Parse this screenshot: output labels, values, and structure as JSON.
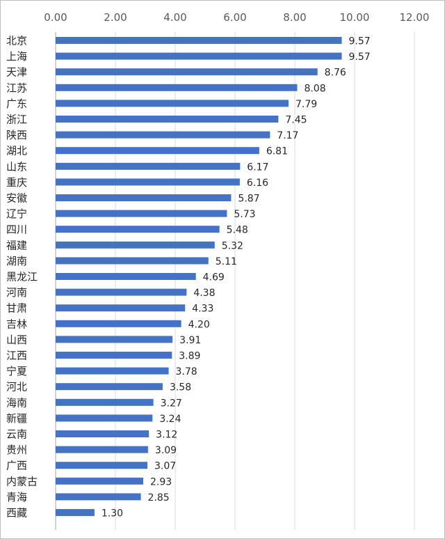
{
  "chart_data": {
    "type": "bar",
    "orientation": "horizontal",
    "title": "",
    "xlabel": "",
    "ylabel": "",
    "xlim": [
      0,
      12
    ],
    "xticks": [
      "0.00",
      "2.00",
      "4.00",
      "6.00",
      "8.00",
      "10.00",
      "12.00"
    ],
    "x_axis_position": "top",
    "grid": true,
    "bar_color": "#4472C4",
    "categories": [
      "北京",
      "上海",
      "天津",
      "江苏",
      "广东",
      "浙江",
      "陕西",
      "湖北",
      "山东",
      "重庆",
      "安徽",
      "辽宁",
      "四川",
      "福建",
      "湖南",
      "黑龙江",
      "河南",
      "甘肃",
      "吉林",
      "山西",
      "江西",
      "宁夏",
      "河北",
      "海南",
      "新疆",
      "云南",
      "贵州",
      "广西",
      "内蒙古",
      "青海",
      "西藏"
    ],
    "values": [
      9.57,
      9.57,
      8.76,
      8.08,
      7.79,
      7.45,
      7.17,
      6.81,
      6.17,
      6.16,
      5.87,
      5.73,
      5.48,
      5.32,
      5.11,
      4.69,
      4.38,
      4.33,
      4.2,
      3.91,
      3.89,
      3.78,
      3.58,
      3.27,
      3.24,
      3.12,
      3.09,
      3.07,
      2.93,
      2.85,
      1.3
    ],
    "data_labels": [
      "9.57",
      "9.57",
      "8.76",
      "8.08",
      "7.79",
      "7.45",
      "7.17",
      "6.81",
      "6.17",
      "6.16",
      "5.87",
      "5.73",
      "5.48",
      "5.32",
      "5.11",
      "4.69",
      "4.38",
      "4.33",
      "4.20",
      "3.91",
      "3.89",
      "3.78",
      "3.58",
      "3.27",
      "3.24",
      "3.12",
      "3.09",
      "3.07",
      "2.93",
      "2.85",
      "1.30"
    ]
  }
}
